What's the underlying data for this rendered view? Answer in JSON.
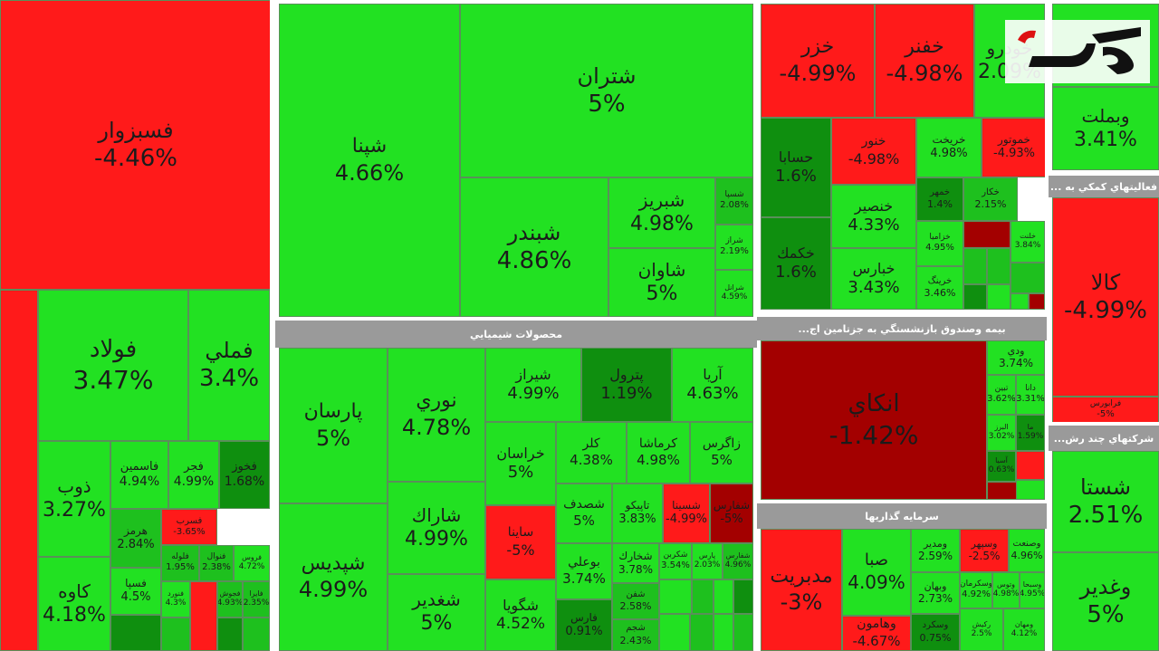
{
  "chart_data": {
    "type": "treemap",
    "colors": {
      "up": "#22e122",
      "up_mid": "#1ec01e",
      "up_dark": "#0f8f0f",
      "down": "#ff1a1a",
      "down_dark": "#a30000",
      "header": "#9a9a9a"
    },
    "sections": [
      {
        "label": "محصولات شيميايي"
      },
      {
        "label": "بيمه وصندوق بازنشستگي به جزتامين اج..."
      },
      {
        "label": "سرمايه گذاريها"
      },
      {
        "label": "فعاليتهاي كمكي به ..."
      },
      {
        "label": "شركتهاي چند رش..."
      }
    ],
    "tiles": [
      {
        "name": "فسبزوار",
        "change": "-4.46%"
      },
      {
        "name": "فولاد",
        "change": "3.47%"
      },
      {
        "name": "فملي",
        "change": "3.4%"
      },
      {
        "name": "ذوب",
        "change": "3.27%"
      },
      {
        "name": "فاسمين",
        "change": "4.94%"
      },
      {
        "name": "فجر",
        "change": "4.99%"
      },
      {
        "name": "فخوز",
        "change": "1.68%"
      },
      {
        "name": "هرمز",
        "change": "2.84%"
      },
      {
        "name": "فسرب",
        "change": "-3.65%"
      },
      {
        "name": "فلوله",
        "change": "1.95%"
      },
      {
        "name": "فنوال",
        "change": "2.38%"
      },
      {
        "name": "كاوه",
        "change": "4.18%"
      },
      {
        "name": "فسپا",
        "change": "4.5%"
      },
      {
        "name": "فنورد",
        "change": "4.3%"
      },
      {
        "name": "فجوش",
        "change": "4.93%"
      },
      {
        "name": "فايرا",
        "change": "2.35%"
      },
      {
        "name": "فروس",
        "change": "4.72%"
      },
      {
        "name": "شپنا",
        "change": "4.66%"
      },
      {
        "name": "شتران",
        "change": "5%"
      },
      {
        "name": "شبندر",
        "change": "4.86%"
      },
      {
        "name": "شبريز",
        "change": "4.98%"
      },
      {
        "name": "شاوان",
        "change": "5%"
      },
      {
        "name": "شسپا",
        "change": "2.08%"
      },
      {
        "name": "شراز",
        "change": "2.19%"
      },
      {
        "name": "شرانل",
        "change": "4.59%"
      },
      {
        "name": "پارسان",
        "change": "5%"
      },
      {
        "name": "نوري",
        "change": "4.78%"
      },
      {
        "name": "شيراز",
        "change": "4.99%"
      },
      {
        "name": "پترول",
        "change": "1.19%"
      },
      {
        "name": "آريا",
        "change": "4.63%"
      },
      {
        "name": "خراسان",
        "change": "5%"
      },
      {
        "name": "كلر",
        "change": "4.38%"
      },
      {
        "name": "كرماشا",
        "change": "4.98%"
      },
      {
        "name": "زاگرس",
        "change": "5%"
      },
      {
        "name": "شاراك",
        "change": "4.99%"
      },
      {
        "name": "شپديس",
        "change": "4.99%"
      },
      {
        "name": "ساينا",
        "change": "-5%"
      },
      {
        "name": "شصدف",
        "change": "5%"
      },
      {
        "name": "تاپيكو",
        "change": "3.83%"
      },
      {
        "name": "شسينا",
        "change": "-4.99%"
      },
      {
        "name": "شفارس",
        "change": "-5%"
      },
      {
        "name": "شغدير",
        "change": "5%"
      },
      {
        "name": "بوعلي",
        "change": "3.74%"
      },
      {
        "name": "شخارك",
        "change": "3.78%"
      },
      {
        "name": "شكربن",
        "change": "3.54%"
      },
      {
        "name": "پارس",
        "change": "2.03%"
      },
      {
        "name": "شفارس",
        "change": "4.96%"
      },
      {
        "name": "شگويا",
        "change": "4.52%"
      },
      {
        "name": "فارس",
        "change": "0.91%"
      },
      {
        "name": "شفن",
        "change": "2.58%"
      },
      {
        "name": "شجم",
        "change": "2.43%"
      },
      {
        "name": "خزر",
        "change": "-4.99%"
      },
      {
        "name": "خفنر",
        "change": "-4.98%"
      },
      {
        "name": "خودرو",
        "change": "2.09%"
      },
      {
        "name": "حسابا",
        "change": "1.6%"
      },
      {
        "name": "خنور",
        "change": "-4.98%"
      },
      {
        "name": "خريخت",
        "change": "4.98%"
      },
      {
        "name": "خموتور",
        "change": "-4.93%"
      },
      {
        "name": "خمهر",
        "change": "1.4%"
      },
      {
        "name": "خكار",
        "change": "2.15%"
      },
      {
        "name": "خكمك",
        "change": "1.6%"
      },
      {
        "name": "خنصير",
        "change": "4.33%"
      },
      {
        "name": "خزاميا",
        "change": "4.95%"
      },
      {
        "name": "خلنت",
        "change": "3.84%"
      },
      {
        "name": "خبارس",
        "change": "3.43%"
      },
      {
        "name": "خرينگ",
        "change": "3.46%"
      },
      {
        "name": "انكاي",
        "change": "-1.42%"
      },
      {
        "name": "ودي",
        "change": "3.74%"
      },
      {
        "name": "تبين",
        "change": "3.62%"
      },
      {
        "name": "دانا",
        "change": "3.31%"
      },
      {
        "name": "البرز",
        "change": "3.02%"
      },
      {
        "name": "آسيا",
        "change": "0.63%"
      },
      {
        "name": "ما",
        "change": "1.59%"
      },
      {
        "name": "مدبريت",
        "change": "-3%"
      },
      {
        "name": "صبا",
        "change": "4.09%"
      },
      {
        "name": "ومدير",
        "change": "2.59%"
      },
      {
        "name": "وسپهر",
        "change": "-2.5%"
      },
      {
        "name": "وصنعت",
        "change": "4.96%"
      },
      {
        "name": "وبهان",
        "change": "2.73%"
      },
      {
        "name": "وسكرمان",
        "change": "4.92%"
      },
      {
        "name": "وتوس",
        "change": "4.98%"
      },
      {
        "name": "وسبحا",
        "change": "4.95%"
      },
      {
        "name": "وهامون",
        "change": "-4.67%"
      },
      {
        "name": "وسكرد",
        "change": "0.75%"
      },
      {
        "name": "ركيش",
        "change": "2.5%"
      },
      {
        "name": "ومهان",
        "change": "4.12%"
      },
      {
        "name": "وبملت",
        "change": "3.41%"
      },
      {
        "name": "كالا",
        "change": "-4.99%"
      },
      {
        "name": "فرابورس",
        "change": "-5%"
      },
      {
        "name": "شستا",
        "change": "2.51%"
      },
      {
        "name": "وغدير",
        "change": "5%"
      }
    ]
  }
}
